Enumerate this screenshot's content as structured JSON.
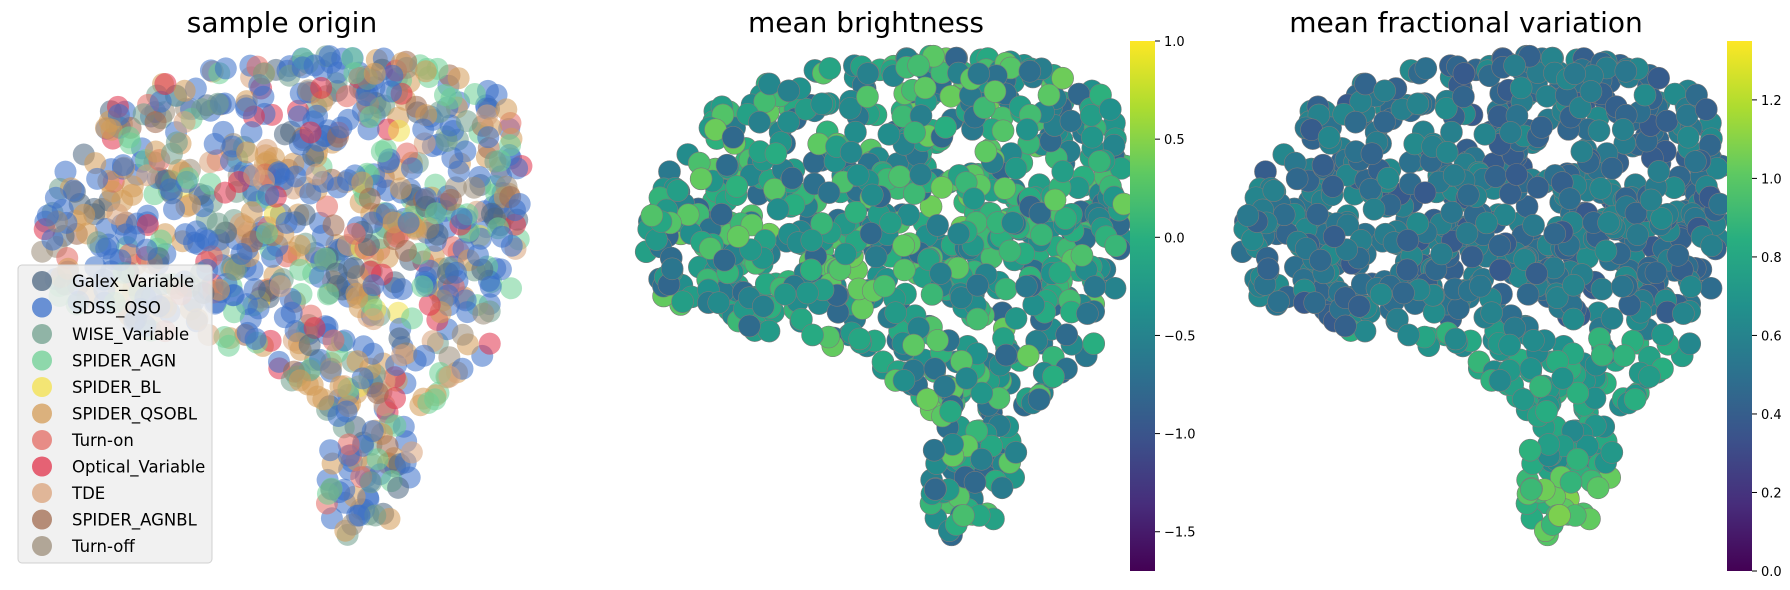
{
  "chart_data": [
    {
      "type": "scatter",
      "title": "sample origin",
      "axes_visible": false,
      "legend_placement": "lower-left",
      "series": [
        {
          "name": "Galex_Variable",
          "color": "#4c6680"
        },
        {
          "name": "SDSS_QSO",
          "color": "#3a6fc9"
        },
        {
          "name": "WISE_Variable",
          "color": "#6f9f8c"
        },
        {
          "name": "SPIDER_AGN",
          "color": "#6ccf93"
        },
        {
          "name": "SPIDER_BL",
          "color": "#f3e04a"
        },
        {
          "name": "SPIDER_QSOBL",
          "color": "#d39b56"
        },
        {
          "name": "Turn-on",
          "color": "#e36a62"
        },
        {
          "name": "Optical_Variable",
          "color": "#e0324a"
        },
        {
          "name": "TDE",
          "color": "#d9a27a"
        },
        {
          "name": "SPIDER_AGNBL",
          "color": "#a06a4e"
        },
        {
          "name": "Turn-off",
          "color": "#9b8c78"
        }
      ]
    },
    {
      "type": "scatter",
      "title": "mean brightness",
      "axes_visible": false,
      "colormap": "viridis",
      "colorbar": {
        "vmin": -1.7,
        "vmax": 1.0,
        "ticks": [
          1.0,
          0.5,
          0.0,
          -0.5,
          -1.0,
          -1.5
        ],
        "tick_labels": [
          "1.0",
          "0.5",
          "0.0",
          "−0.5",
          "−1.0",
          "−1.5"
        ]
      }
    },
    {
      "type": "scatter",
      "title": "mean fractional variation",
      "axes_visible": false,
      "colormap": "viridis",
      "colorbar": {
        "vmin": 0.0,
        "vmax": 1.35,
        "ticks": [
          1.2,
          1.0,
          0.8,
          0.6,
          0.4,
          0.2,
          0.0
        ],
        "tick_labels": [
          "1.2",
          "1.0",
          "0.8",
          "0.6",
          "0.4",
          "0.2",
          "0.0"
        ]
      }
    }
  ]
}
